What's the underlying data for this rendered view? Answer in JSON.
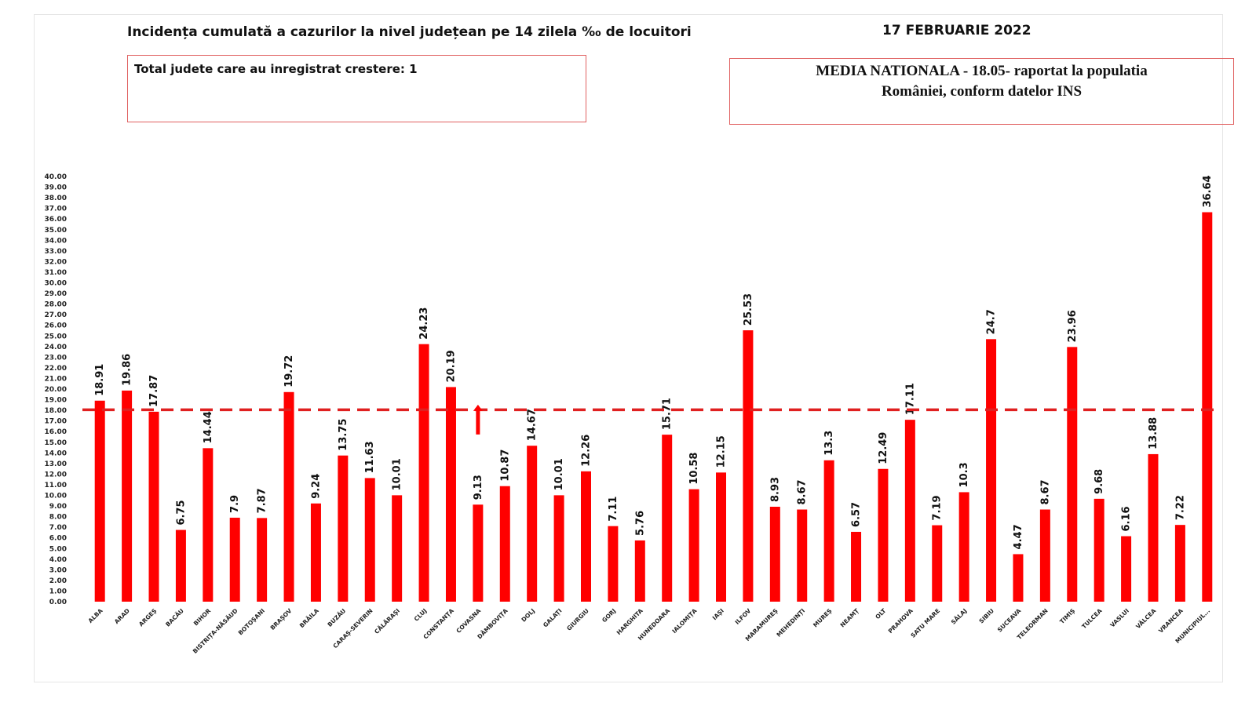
{
  "header": {
    "title": "Incidența cumulată a cazurilor la nivel județean pe 14 zilela ‰ de locuitori",
    "date": "17 FEBRUARIE 2022"
  },
  "info_left": {
    "text": "Total judete care au inregistrat crestere: 1"
  },
  "info_right": {
    "line1": "MEDIA NATIONALA - 18.05-  raportat la populatia",
    "line2": "României, conform datelor INS"
  },
  "colors": {
    "bar": "#ff0000",
    "reference_line": "#e02020",
    "arrow": "#ff0000"
  },
  "chart_data": {
    "type": "bar",
    "title": "Incidența cumulată a cazurilor la nivel județean pe 14 zilela ‰ de locuitori",
    "xlabel": "",
    "ylabel": "",
    "ylim": [
      0,
      40
    ],
    "ytick_step": 1,
    "grid": false,
    "reference_line": {
      "value": 18.05,
      "style": "dashed",
      "label": "MEDIA NATIONALA - 18.05"
    },
    "increase_marker": {
      "category": "COVASNA",
      "symbol": "up-arrow"
    },
    "categories": [
      "ALBA",
      "ARAD",
      "ARGEȘ",
      "BACĂU",
      "BIHOR",
      "BISTRIȚA-NĂSĂUD",
      "BOTOȘANI",
      "BRAȘOV",
      "BRĂILA",
      "BUZĂU",
      "CARAȘ-SEVERIN",
      "CĂLĂRAȘI",
      "CLUJ",
      "CONSTANȚA",
      "COVASNA",
      "DÂMBOVIȚA",
      "DOLJ",
      "GALAȚI",
      "GIURGIU",
      "GORJ",
      "HARGHITA",
      "HUNEDOARA",
      "IALOMIȚA",
      "IAȘI",
      "ILFOV",
      "MARAMUREȘ",
      "MEHEDINȚI",
      "MUREȘ",
      "NEAMȚ",
      "OLT",
      "PRAHOVA",
      "SATU MARE",
      "SĂLAJ",
      "SIBIU",
      "SUCEAVA",
      "TELEORMAN",
      "TIMIȘ",
      "TULCEA",
      "VASLUI",
      "VÂLCEA",
      "VRANCEA",
      "MUNICIPIUL..."
    ],
    "values": [
      18.91,
      19.86,
      17.87,
      6.75,
      14.44,
      7.9,
      7.87,
      19.72,
      9.24,
      13.75,
      11.63,
      10.01,
      24.23,
      20.19,
      9.13,
      10.87,
      14.67,
      10.01,
      12.26,
      7.11,
      5.76,
      15.71,
      10.58,
      12.15,
      25.53,
      8.93,
      8.67,
      13.3,
      6.57,
      12.49,
      17.11,
      7.19,
      10.3,
      24.7,
      4.47,
      8.67,
      23.96,
      9.68,
      6.16,
      13.88,
      7.22,
      36.64
    ],
    "value_labels": [
      "18.91",
      "19.86",
      "17.87",
      "6.75",
      "14.44",
      "7.9",
      "7.87",
      "19.72",
      "9.24",
      "13.75",
      "11.63",
      "10.01",
      "24.23",
      "20.19",
      "9.13",
      "10.87",
      "14.67",
      "10.01",
      "12.26",
      "7.11",
      "5.76",
      "15.71",
      "10.58",
      "12.15",
      "25.53",
      "8.93",
      "8.67",
      "13.3",
      "6.57",
      "12.49",
      "17.11",
      "7.19",
      "10.3",
      "24.7",
      "4.47",
      "8.67",
      "23.96",
      "9.68",
      "6.16",
      "13.88",
      "7.22",
      "36.64"
    ],
    "ytick_labels": [
      "0.00",
      "1.00",
      "2.00",
      "3.00",
      "4.00",
      "5.00",
      "6.00",
      "7.00",
      "8.00",
      "9.00",
      "10.00",
      "11.00",
      "12.00",
      "13.00",
      "14.00",
      "15.00",
      "16.00",
      "17.00",
      "18.00",
      "19.00",
      "20.00",
      "21.00",
      "22.00",
      "23.00",
      "24.00",
      "25.00",
      "26.00",
      "27.00",
      "28.00",
      "29.00",
      "30.00",
      "31.00",
      "32.00",
      "33.00",
      "34.00",
      "35.00",
      "36.00",
      "37.00",
      "38.00",
      "39.00",
      "40.00"
    ]
  }
}
